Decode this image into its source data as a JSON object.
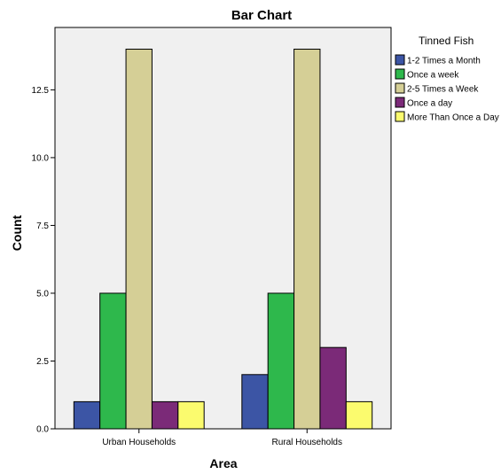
{
  "chart_data": {
    "type": "bar",
    "title": "Bar Chart",
    "xlabel": "Area",
    "ylabel": "Count",
    "categories": [
      "Urban Households",
      "Rural Households"
    ],
    "ylim": [
      0,
      14.8
    ],
    "yticks": [
      "0.0",
      "2.5",
      "5.0",
      "7.5",
      "10.0",
      "12.5"
    ],
    "legend_title": "Tinned Fish",
    "legend_placement": "right",
    "plot_background": "#f0f0f0",
    "series": [
      {
        "name": "1-2 Times a Month",
        "color": "#3c55a5",
        "values": [
          1,
          2
        ]
      },
      {
        "name": "Once a week",
        "color": "#2eb84c",
        "values": [
          5,
          5
        ]
      },
      {
        "name": "2-5 Times a Week",
        "color": "#d5cf96",
        "values": [
          14,
          14
        ]
      },
      {
        "name": "Once a day",
        "color": "#7b2a78",
        "values": [
          1,
          3
        ]
      },
      {
        "name": "More Than Once a Day",
        "color": "#fbfb6e",
        "values": [
          1,
          1
        ]
      }
    ]
  }
}
